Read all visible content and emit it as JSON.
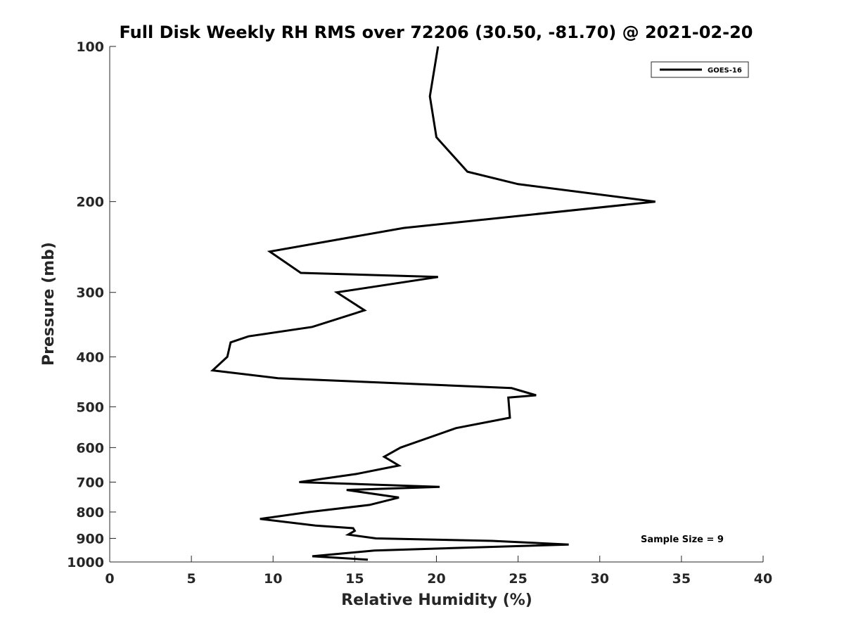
{
  "chart_data": {
    "type": "line",
    "title": "Full Disk Weekly RH RMS over 72206 (30.50, -81.70) @ 2021-02-20",
    "xlabel": "Relative Humidity (%)",
    "ylabel": "Pressure (mb)",
    "xlim": [
      0,
      40
    ],
    "ylim": [
      100,
      1000
    ],
    "y_scale": "log",
    "y_reversed": true,
    "grid": false,
    "legend_position": "top-right",
    "x_ticks": [
      0,
      5,
      10,
      15,
      20,
      25,
      30,
      35,
      40
    ],
    "x_tick_labels": [
      "0",
      "5",
      "10",
      "15",
      "20",
      "25",
      "30",
      "35",
      "40"
    ],
    "y_ticks": [
      100,
      200,
      300,
      400,
      500,
      600,
      700,
      800,
      900,
      1000
    ],
    "y_tick_labels": [
      "100",
      "200",
      "300",
      "400",
      "500",
      "600",
      "700",
      "800",
      "900",
      "1000"
    ],
    "annotation": "Sample Size = 9",
    "line_color": "#000000",
    "series": [
      {
        "name": "GOES-16",
        "x": [
          20.1,
          19.6,
          20.0,
          21.9,
          25.0,
          33.4,
          18.0,
          9.8,
          11.7,
          20.1,
          13.9,
          15.6,
          12.4,
          8.5,
          7.4,
          7.2,
          6.3,
          10.3,
          24.6,
          26.1,
          24.4,
          24.5,
          21.2,
          17.8,
          16.8,
          17.7,
          15.1,
          11.6,
          20.2,
          14.5,
          17.7,
          15.9,
          12.2,
          9.2,
          12.6,
          14.9,
          15.0,
          14.6,
          16.3,
          23.4,
          28.1,
          16.2,
          12.4,
          15.8
        ],
        "y": [
          100,
          125,
          150,
          175,
          185,
          200,
          225,
          250,
          275,
          280,
          300,
          325,
          350,
          365,
          375,
          400,
          425,
          440,
          460,
          475,
          480,
          525,
          550,
          600,
          625,
          650,
          675,
          700,
          715,
          725,
          750,
          775,
          800,
          825,
          850,
          860,
          870,
          885,
          900,
          910,
          925,
          950,
          975,
          990
        ]
      }
    ]
  }
}
